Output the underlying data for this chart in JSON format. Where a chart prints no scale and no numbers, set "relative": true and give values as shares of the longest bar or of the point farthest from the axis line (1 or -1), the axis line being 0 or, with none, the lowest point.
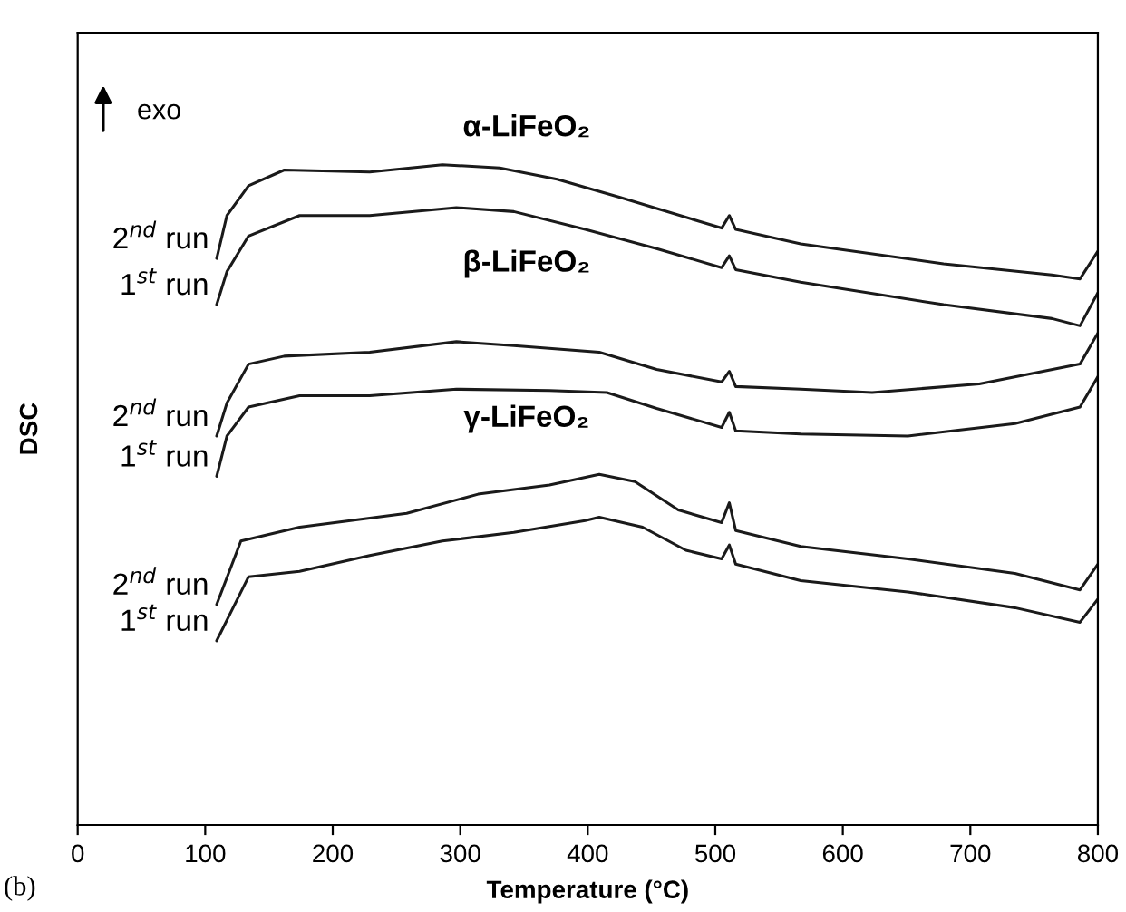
{
  "chart_data": {
    "type": "line",
    "xlabel": "Temperature (°C)",
    "ylabel": "DSC",
    "relative": true,
    "tick_labels": "x",
    "xlim": [
      0,
      800
    ],
    "xticks": [
      0,
      100,
      200,
      300,
      400,
      500,
      600,
      700,
      800
    ],
    "annotations": [
      "exo",
      "(b)",
      "α-LiFeO₂",
      "β-LiFeO₂",
      "γ-LiFeO₂"
    ],
    "series": [
      {
        "name": "2$^{nd}$ run",
        "color": "#1a1a1a",
        "x": [
          109,
          117,
          134,
          162,
          229,
          286,
          331,
          376,
          426,
          505,
          511,
          516,
          567,
          679,
          764,
          786,
          800
        ],
        "values": [
          0.858,
          0.923,
          0.968,
          0.992,
          0.989,
          1.0,
          0.995,
          0.978,
          0.95,
          0.904,
          0.923,
          0.902,
          0.88,
          0.85,
          0.833,
          0.827,
          0.869
        ]
      },
      {
        "name": "1$^{st}$ run",
        "color": "#1a1a1a",
        "x": [
          109,
          117,
          134,
          174,
          229,
          297,
          342,
          398,
          454,
          505,
          511,
          516,
          567,
          679,
          764,
          786,
          800
        ],
        "values": [
          0.788,
          0.838,
          0.892,
          0.923,
          0.923,
          0.935,
          0.929,
          0.902,
          0.873,
          0.844,
          0.862,
          0.841,
          0.822,
          0.788,
          0.767,
          0.756,
          0.806
        ]
      },
      {
        "name": "2$^{nd}$ run",
        "color": "#1a1a1a",
        "x": [
          109,
          117,
          134,
          162,
          229,
          297,
          342,
          409,
          454,
          505,
          511,
          516,
          567,
          623,
          707,
          786,
          800
        ],
        "values": [
          0.589,
          0.639,
          0.698,
          0.71,
          0.716,
          0.732,
          0.726,
          0.716,
          0.69,
          0.671,
          0.687,
          0.664,
          0.66,
          0.655,
          0.668,
          0.698,
          0.745
        ]
      },
      {
        "name": "1$^{st}$ run",
        "color": "#1a1a1a",
        "x": [
          109,
          117,
          134,
          174,
          229,
          297,
          370,
          415,
          454,
          505,
          511,
          516,
          567,
          651,
          735,
          786,
          800
        ],
        "values": [
          0.528,
          0.589,
          0.633,
          0.65,
          0.65,
          0.66,
          0.658,
          0.655,
          0.631,
          0.602,
          0.625,
          0.597,
          0.592,
          0.589,
          0.608,
          0.633,
          0.679
        ]
      },
      {
        "name": "2$^{nd}$ run",
        "color": "#1a1a1a",
        "x": [
          109,
          128,
          174,
          258,
          314,
          370,
          409,
          437,
          471,
          505,
          511,
          516,
          567,
          651,
          735,
          786,
          800
        ],
        "values": [
          0.334,
          0.43,
          0.451,
          0.472,
          0.501,
          0.515,
          0.531,
          0.52,
          0.477,
          0.458,
          0.488,
          0.446,
          0.422,
          0.403,
          0.381,
          0.356,
          0.395
        ]
      },
      {
        "name": "1$^{st}$ run",
        "color": "#1a1a1a",
        "x": [
          109,
          134,
          174,
          229,
          286,
          342,
          398,
          409,
          443,
          477,
          505,
          511,
          516,
          567,
          651,
          735,
          786,
          800
        ],
        "values": [
          0.279,
          0.376,
          0.384,
          0.408,
          0.43,
          0.443,
          0.461,
          0.466,
          0.451,
          0.416,
          0.403,
          0.424,
          0.395,
          0.37,
          0.353,
          0.329,
          0.307,
          0.342
        ]
      }
    ]
  }
}
